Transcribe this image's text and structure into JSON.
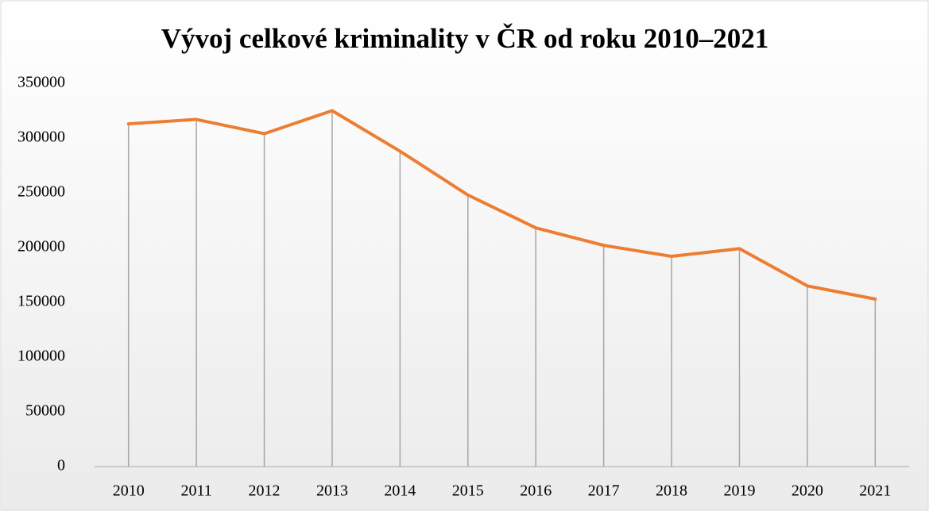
{
  "chart_data": {
    "type": "line",
    "title": "Vývoj celkové kriminality v ČR od roku 2010–2021",
    "categories": [
      "2010",
      "2011",
      "2012",
      "2013",
      "2014",
      "2015",
      "2016",
      "2017",
      "2018",
      "2019",
      "2020",
      "2021"
    ],
    "values": [
      313000,
      317000,
      304000,
      325000,
      288000,
      248000,
      218000,
      202000,
      192000,
      199000,
      165000,
      153000
    ],
    "color": "#ed7d31",
    "drop_lines": true,
    "ylim": [
      0,
      350000
    ],
    "yticks": [
      0,
      50000,
      100000,
      150000,
      200000,
      250000,
      300000,
      350000
    ],
    "grid": false
  }
}
